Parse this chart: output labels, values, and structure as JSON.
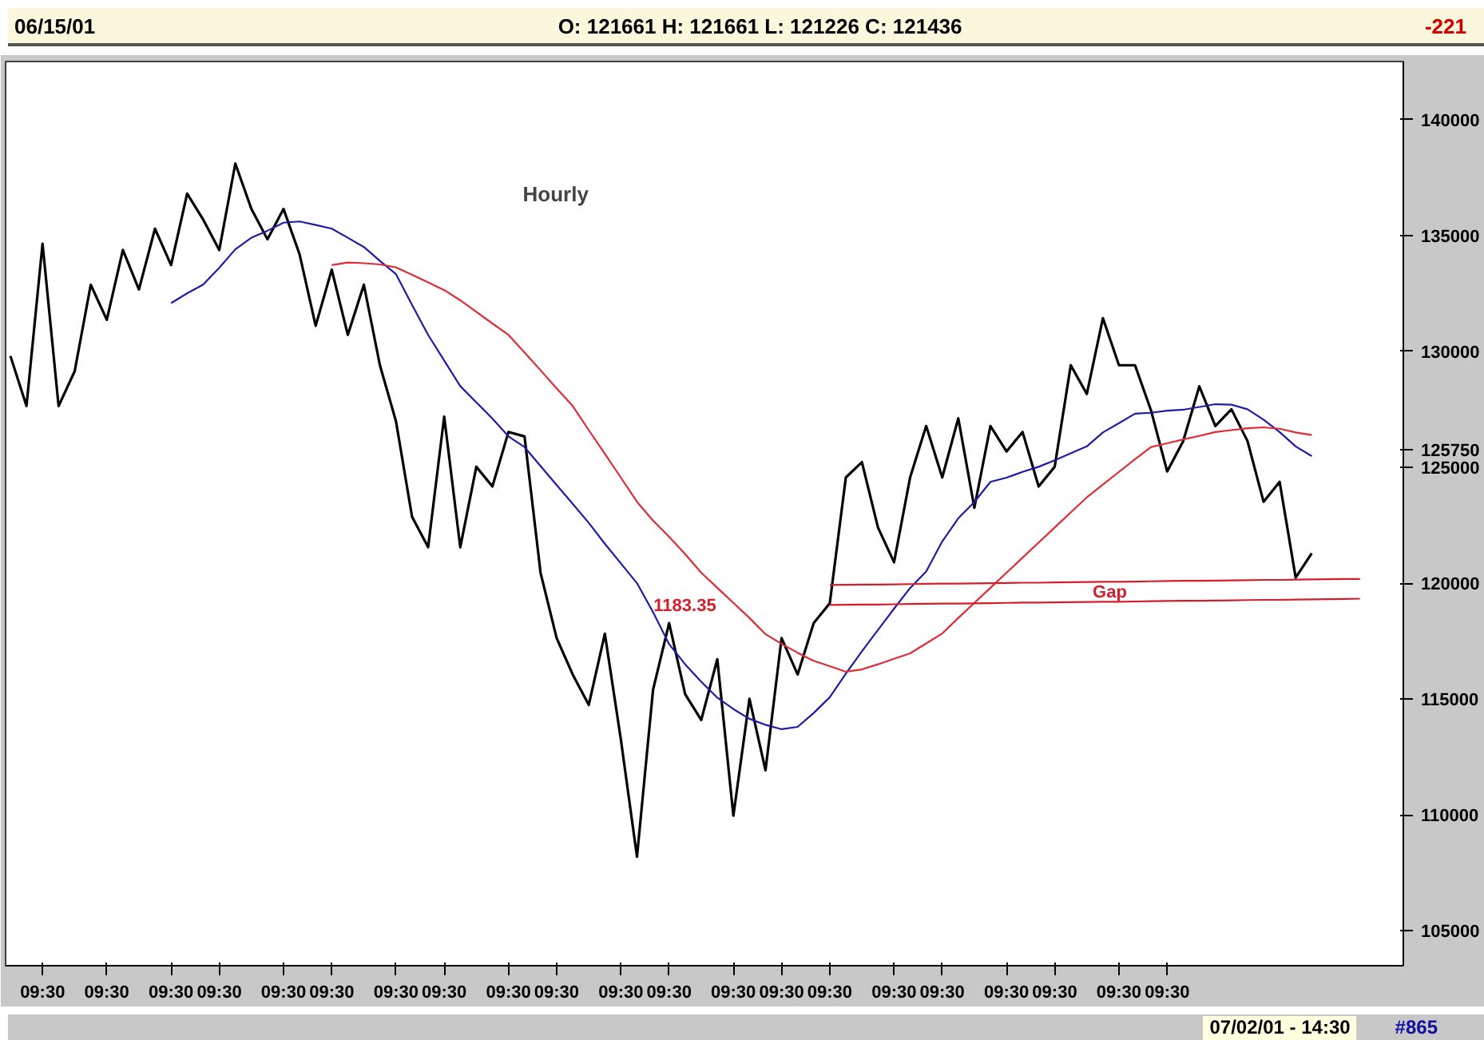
{
  "chart_data": {
    "type": "line",
    "title": "Hourly",
    "annotations": [
      "06/15/01",
      "O: 121661  H: 121661  L: 121226  C: 121436",
      "-221",
      "07/02/01 - 14:30",
      "#865",
      "1183.35",
      "Gap"
    ],
    "categories": [
      null,
      null,
      "09:30",
      null,
      null,
      null,
      "09:30",
      null,
      null,
      null,
      "09:30",
      null,
      null,
      "09:30",
      null,
      null,
      null,
      "09:30",
      null,
      null,
      "09:30",
      null,
      null,
      null,
      "09:30",
      null,
      null,
      "09:30",
      null,
      null,
      null,
      "09:30",
      null,
      null,
      "09:30",
      null,
      null,
      null,
      "09:30",
      null,
      null,
      "09:30",
      null,
      null,
      null,
      "09:30",
      null,
      null,
      "09:30",
      null,
      null,
      "09:30",
      null,
      null,
      null,
      "09:30",
      null,
      null,
      "09:30",
      null,
      null,
      null,
      "09:30",
      null,
      null,
      "09:30",
      null,
      null,
      null,
      "09:30",
      null,
      null,
      "09:30",
      null,
      null,
      null,
      null,
      null,
      null,
      null,
      null,
      null,
      null,
      null,
      null,
      null,
      null
    ],
    "ylim": [
      103500,
      142500
    ],
    "yticks": [
      105000,
      110000,
      115000,
      120000,
      125000,
      125750,
      130000,
      135000,
      140000
    ],
    "grid": false,
    "series": [
      {
        "color": "#000000",
        "values": [
          129800,
          127640,
          134640,
          127640,
          129140,
          132870,
          131360,
          134370,
          132670,
          135290,
          133720,
          136800,
          135680,
          134370,
          138100,
          136140,
          134830,
          136140,
          134180,
          131100,
          133520,
          130710,
          132870,
          129400,
          126980,
          122860,
          121550,
          127180,
          121550,
          125020,
          124170,
          126520,
          126330,
          120440,
          117630,
          116060,
          114750,
          117820,
          113240,
          108200,
          115400,
          118280,
          115210,
          114100,
          116720,
          109970,
          115010,
          111930,
          117630,
          116060,
          118280,
          119130,
          124560,
          125220,
          122400,
          120900,
          124560,
          126780,
          124560,
          127110,
          123250,
          126780,
          125680,
          126520,
          124170,
          125020,
          129400,
          128160,
          131430,
          129400,
          129400,
          127440,
          124820,
          126130,
          128490,
          126780,
          127500,
          126130,
          123510,
          124370,
          120240,
          121290,
          null,
          null,
          null,
          null,
          null
        ]
      },
      {
        "color": "#1c1ca8",
        "values": [
          null,
          null,
          null,
          null,
          null,
          null,
          null,
          null,
          null,
          null,
          132080,
          132500,
          132880,
          133600,
          134400,
          134900,
          135200,
          135550,
          135600,
          135450,
          135290,
          134900,
          134500,
          133900,
          133330,
          132000,
          130710,
          129600,
          128500,
          127800,
          127100,
          126330,
          125870,
          125050,
          124230,
          123420,
          122600,
          121700,
          120850,
          120000,
          118750,
          117370,
          116500,
          115750,
          115060,
          114570,
          114150,
          113890,
          113700,
          113800,
          114400,
          115080,
          116100,
          117060,
          117980,
          118900,
          119790,
          120500,
          121800,
          122800,
          123500,
          124370,
          124550,
          124800,
          125020,
          125300,
          125600,
          125900,
          126500,
          126900,
          127310,
          127350,
          127440,
          127480,
          127600,
          127720,
          127700,
          127500,
          127050,
          126520,
          125900,
          125480,
          null,
          null,
          null,
          null,
          null
        ]
      },
      {
        "color": "#e02a36",
        "values": [
          null,
          null,
          null,
          null,
          null,
          null,
          null,
          null,
          null,
          null,
          null,
          null,
          null,
          null,
          null,
          null,
          null,
          null,
          null,
          null,
          133720,
          133830,
          133800,
          133750,
          133620,
          133300,
          132970,
          132640,
          132200,
          131700,
          131200,
          130710,
          129950,
          129180,
          128400,
          127640,
          126600,
          125580,
          124550,
          123510,
          122700,
          122000,
          121250,
          120450,
          119800,
          119150,
          118500,
          117800,
          117380,
          117000,
          116650,
          116420,
          116180,
          116280,
          116500,
          116740,
          116970,
          117400,
          117830,
          118500,
          119150,
          119800,
          120450,
          121100,
          121750,
          122400,
          123050,
          123700,
          124250,
          124800,
          125350,
          125870,
          126030,
          126200,
          126350,
          126520,
          126600,
          126680,
          126720,
          126660,
          126500,
          126390,
          null,
          null,
          null,
          null,
          null
        ]
      },
      {
        "color": "#d41e2c",
        "values": [
          null,
          null,
          null,
          null,
          null,
          null,
          null,
          null,
          null,
          null,
          null,
          null,
          null,
          null,
          null,
          null,
          null,
          null,
          null,
          null,
          null,
          null,
          null,
          null,
          null,
          null,
          null,
          null,
          null,
          null,
          null,
          null,
          null,
          null,
          null,
          null,
          null,
          null,
          null,
          null,
          null,
          null,
          null,
          null,
          null,
          null,
          null,
          null,
          null,
          null,
          null,
          119920,
          119930,
          119940,
          119940,
          119950,
          119960,
          119970,
          119980,
          119980,
          119990,
          120000,
          120010,
          120020,
          120020,
          120030,
          120040,
          120050,
          120060,
          120060,
          120070,
          120080,
          120090,
          120100,
          120100,
          120110,
          120120,
          120130,
          120140,
          120140,
          120150,
          120160,
          120170,
          120180,
          120180,
          null,
          null
        ]
      },
      {
        "color": "#d41e2c",
        "values": [
          null,
          null,
          null,
          null,
          null,
          null,
          null,
          null,
          null,
          null,
          null,
          null,
          null,
          null,
          null,
          null,
          null,
          null,
          null,
          null,
          null,
          null,
          null,
          null,
          null,
          null,
          null,
          null,
          null,
          null,
          null,
          null,
          null,
          null,
          null,
          null,
          null,
          null,
          null,
          null,
          null,
          null,
          null,
          null,
          null,
          null,
          null,
          null,
          null,
          null,
          null,
          119060,
          119070,
          119080,
          119080,
          119090,
          119100,
          119110,
          119120,
          119120,
          119130,
          119140,
          119150,
          119160,
          119160,
          119170,
          119180,
          119190,
          119200,
          119200,
          119210,
          119220,
          119230,
          119240,
          119240,
          119250,
          119260,
          119270,
          119280,
          119280,
          119290,
          119300,
          119310,
          119320,
          119330,
          null,
          null
        ]
      }
    ]
  }
}
